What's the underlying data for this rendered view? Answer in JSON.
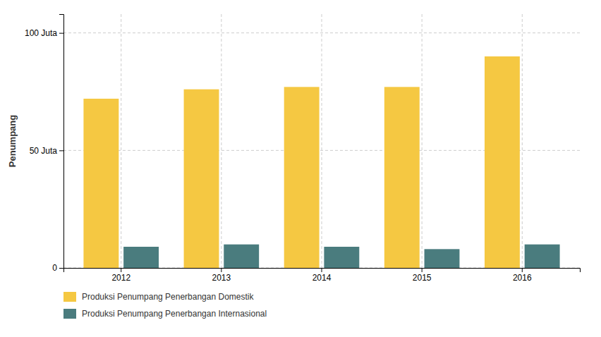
{
  "chart_data": {
    "type": "bar",
    "categories": [
      "2012",
      "2013",
      "2014",
      "2015",
      "2016"
    ],
    "series": [
      {
        "name": "Produksi Penumpang Penerbangan Domestik",
        "color": "#F5C842",
        "values": [
          72,
          76,
          77,
          77,
          90
        ]
      },
      {
        "name": "Produksi Penumpang Penerbangan Internasional",
        "color": "#4A7C7E",
        "values": [
          9,
          10,
          9,
          8,
          10
        ]
      }
    ],
    "y_label": "Penumpang",
    "ylim": [
      0,
      108
    ],
    "yticks": [
      0,
      {
        "value": 50,
        "label": "50 Juta"
      },
      {
        "value": 100,
        "label": "100 Juta"
      }
    ],
    "grid": true,
    "legend": "bottom"
  }
}
